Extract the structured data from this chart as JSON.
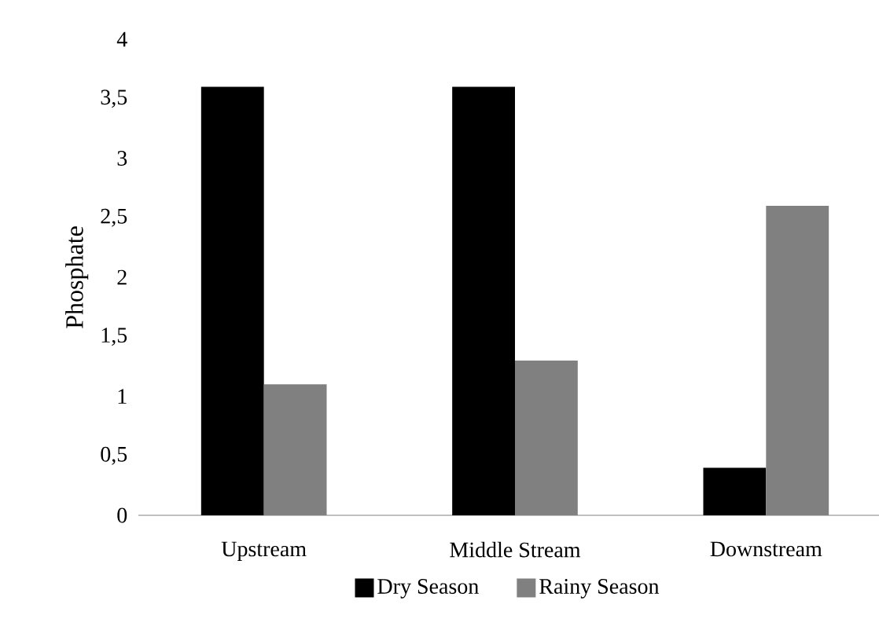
{
  "chart_data": {
    "type": "bar",
    "ylabel": "Phosphate",
    "categories": [
      "Upstream",
      "Middle Stream",
      "Downstream"
    ],
    "series": [
      {
        "name": "Dry Season",
        "color": "#000000",
        "values": [
          3.6,
          3.6,
          0.4
        ]
      },
      {
        "name": "Rainy Season",
        "color": "#808080",
        "values": [
          1.1,
          1.3,
          2.6
        ]
      }
    ],
    "ylim": [
      0,
      4
    ],
    "yticks": [
      0,
      {
        "value": 0.5,
        "label": "0,5"
      },
      1,
      {
        "value": 1.5,
        "label": "1,5"
      },
      2,
      {
        "value": 2.5,
        "label": "2,5"
      },
      3,
      {
        "value": 3.5,
        "label": "3,5"
      },
      4
    ],
    "grid": false,
    "legend": "bottom"
  }
}
